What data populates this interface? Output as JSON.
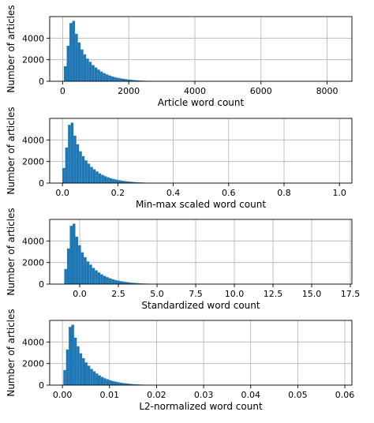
{
  "figure": {
    "bar_color": "#1f77b4",
    "grid_color": "#b0b0b0",
    "axes_color": "#000000"
  },
  "chart_data": [
    {
      "type": "histogram",
      "xlabel": "Article word count",
      "ylabel": "Number of articles",
      "xlim": [
        -390,
        8750
      ],
      "ylim": [
        0,
        6000
      ],
      "grid": true,
      "xticks": [
        0,
        2000,
        4000,
        6000,
        8000
      ],
      "xtick_labels": [
        "0",
        "2000",
        "4000",
        "6000",
        "8000"
      ],
      "yticks": [
        0,
        2000,
        4000
      ],
      "ytick_labels": [
        "0",
        "2000",
        "4000"
      ],
      "bin_start": 40,
      "bin_width": 84,
      "counts": [
        1400,
        3300,
        5400,
        5600,
        4400,
        3600,
        2950,
        2500,
        2100,
        1800,
        1500,
        1280,
        1080,
        900,
        760,
        640,
        540,
        450,
        380,
        320,
        270,
        225,
        190,
        160,
        130,
        105,
        85,
        68,
        55,
        45,
        36,
        30,
        24,
        19,
        15,
        12,
        10,
        8,
        6,
        5,
        4,
        3,
        3,
        2,
        2
      ]
    },
    {
      "type": "histogram",
      "xlabel": "Min-max scaled word count",
      "ylabel": "Number of articles",
      "xlim": [
        -0.046,
        1.045
      ],
      "ylim": [
        0,
        6000
      ],
      "grid": true,
      "xticks": [
        0.0,
        0.2,
        0.4,
        0.6,
        0.8,
        1.0
      ],
      "xtick_labels": [
        "0.0",
        "0.2",
        "0.4",
        "0.6",
        "0.8",
        "1.0"
      ],
      "yticks": [
        0,
        2000,
        4000
      ],
      "ytick_labels": [
        "0",
        "2000",
        "4000"
      ],
      "bin_start": 0.0,
      "bin_width": 0.01,
      "counts": [
        1400,
        3300,
        5400,
        5600,
        4400,
        3600,
        2950,
        2500,
        2100,
        1800,
        1500,
        1280,
        1080,
        900,
        760,
        640,
        540,
        450,
        380,
        320,
        270,
        225,
        190,
        160,
        130,
        105,
        85,
        68,
        55,
        45,
        36,
        30,
        24,
        19,
        15,
        12,
        10,
        8,
        6,
        5,
        4,
        3,
        3,
        2,
        2
      ]
    },
    {
      "type": "histogram",
      "xlabel": "Standardized word count",
      "ylabel": "Number of articles",
      "xlim": [
        -1.94,
        17.6
      ],
      "ylim": [
        0,
        6000
      ],
      "grid": true,
      "xticks": [
        0.0,
        2.5,
        5.0,
        7.5,
        10.0,
        12.5,
        15.0,
        17.5
      ],
      "xtick_labels": [
        "0.0",
        "2.5",
        "5.0",
        "7.5",
        "10.0",
        "12.5",
        "15.0",
        "17.5"
      ],
      "yticks": [
        0,
        2000,
        4000
      ],
      "ytick_labels": [
        "0",
        "2000",
        "4000"
      ],
      "bin_start": -1.0,
      "bin_width": 0.18,
      "counts": [
        1400,
        3300,
        5400,
        5600,
        4400,
        3600,
        2950,
        2500,
        2100,
        1800,
        1500,
        1280,
        1080,
        900,
        760,
        640,
        540,
        450,
        380,
        320,
        270,
        225,
        190,
        160,
        130,
        105,
        85,
        68,
        55,
        45,
        36,
        30,
        24,
        19,
        15,
        12,
        10,
        8,
        6,
        5,
        4,
        3,
        3,
        2,
        2
      ]
    },
    {
      "type": "histogram",
      "xlabel": "L2-normalized word count",
      "ylabel": "Number of articles",
      "xlim": [
        -0.0027,
        0.0615
      ],
      "ylim": [
        0,
        6000
      ],
      "grid": true,
      "xticks": [
        0.0,
        0.01,
        0.02,
        0.03,
        0.04,
        0.05,
        0.06
      ],
      "xtick_labels": [
        "0.00",
        "0.01",
        "0.02",
        "0.03",
        "0.04",
        "0.05",
        "0.06"
      ],
      "yticks": [
        0,
        2000,
        4000
      ],
      "ytick_labels": [
        "0",
        "2000",
        "4000"
      ],
      "bin_start": 0.0002,
      "bin_width": 0.00057,
      "counts": [
        1400,
        3300,
        5400,
        5600,
        4400,
        3600,
        2950,
        2500,
        2100,
        1800,
        1500,
        1280,
        1080,
        900,
        760,
        640,
        540,
        450,
        380,
        320,
        270,
        225,
        190,
        160,
        130,
        105,
        85,
        68,
        55,
        45,
        36,
        30,
        24,
        19,
        15,
        12,
        10,
        8,
        6,
        5,
        4,
        3,
        3,
        2,
        2
      ]
    }
  ]
}
